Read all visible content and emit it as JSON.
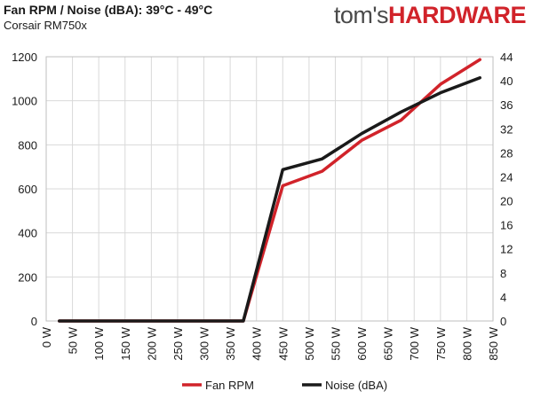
{
  "header": {
    "title": "Fan RPM / Noise (dBA): 39°C - 49°C",
    "subtitle": "Corsair RM750x",
    "logo_part1": "tom's",
    "logo_part2": "HARDWARE"
  },
  "colors": {
    "fan_rpm": "#d1232a",
    "noise": "#1a1a1a",
    "grid": "#d9d9d9",
    "brand": "#d1232a"
  },
  "chart_data": {
    "type": "line",
    "categories": [
      "0 W",
      "50 W",
      "100 W",
      "150 W",
      "200 W",
      "250 W",
      "300 W",
      "350 W",
      "400 W",
      "450 W",
      "500 W",
      "550 W",
      "600 W",
      "650 W",
      "700 W",
      "750 W",
      "800 W",
      "850 W"
    ],
    "x": [
      25,
      375,
      450,
      525,
      600,
      675,
      750,
      825
    ],
    "series": [
      {
        "name": "Fan RPM",
        "axis": "left",
        "values": [
          0,
          0,
          614,
          680,
          820,
          912,
          1075,
          1187
        ]
      },
      {
        "name": "Noise (dBA)",
        "axis": "right",
        "values": [
          0,
          0,
          25.2,
          27.0,
          31.2,
          34.8,
          38.0,
          40.5
        ]
      }
    ],
    "ylim_left": [
      0,
      1200
    ],
    "yticks_left": [
      0,
      200,
      400,
      600,
      800,
      1000,
      1200
    ],
    "ylim_right": [
      0,
      44
    ],
    "yticks_right": [
      0,
      4,
      8,
      12,
      16,
      20,
      24,
      28,
      32,
      36,
      40,
      44
    ],
    "xlim": [
      0,
      850
    ],
    "grid": true,
    "legend_position": "bottom"
  }
}
